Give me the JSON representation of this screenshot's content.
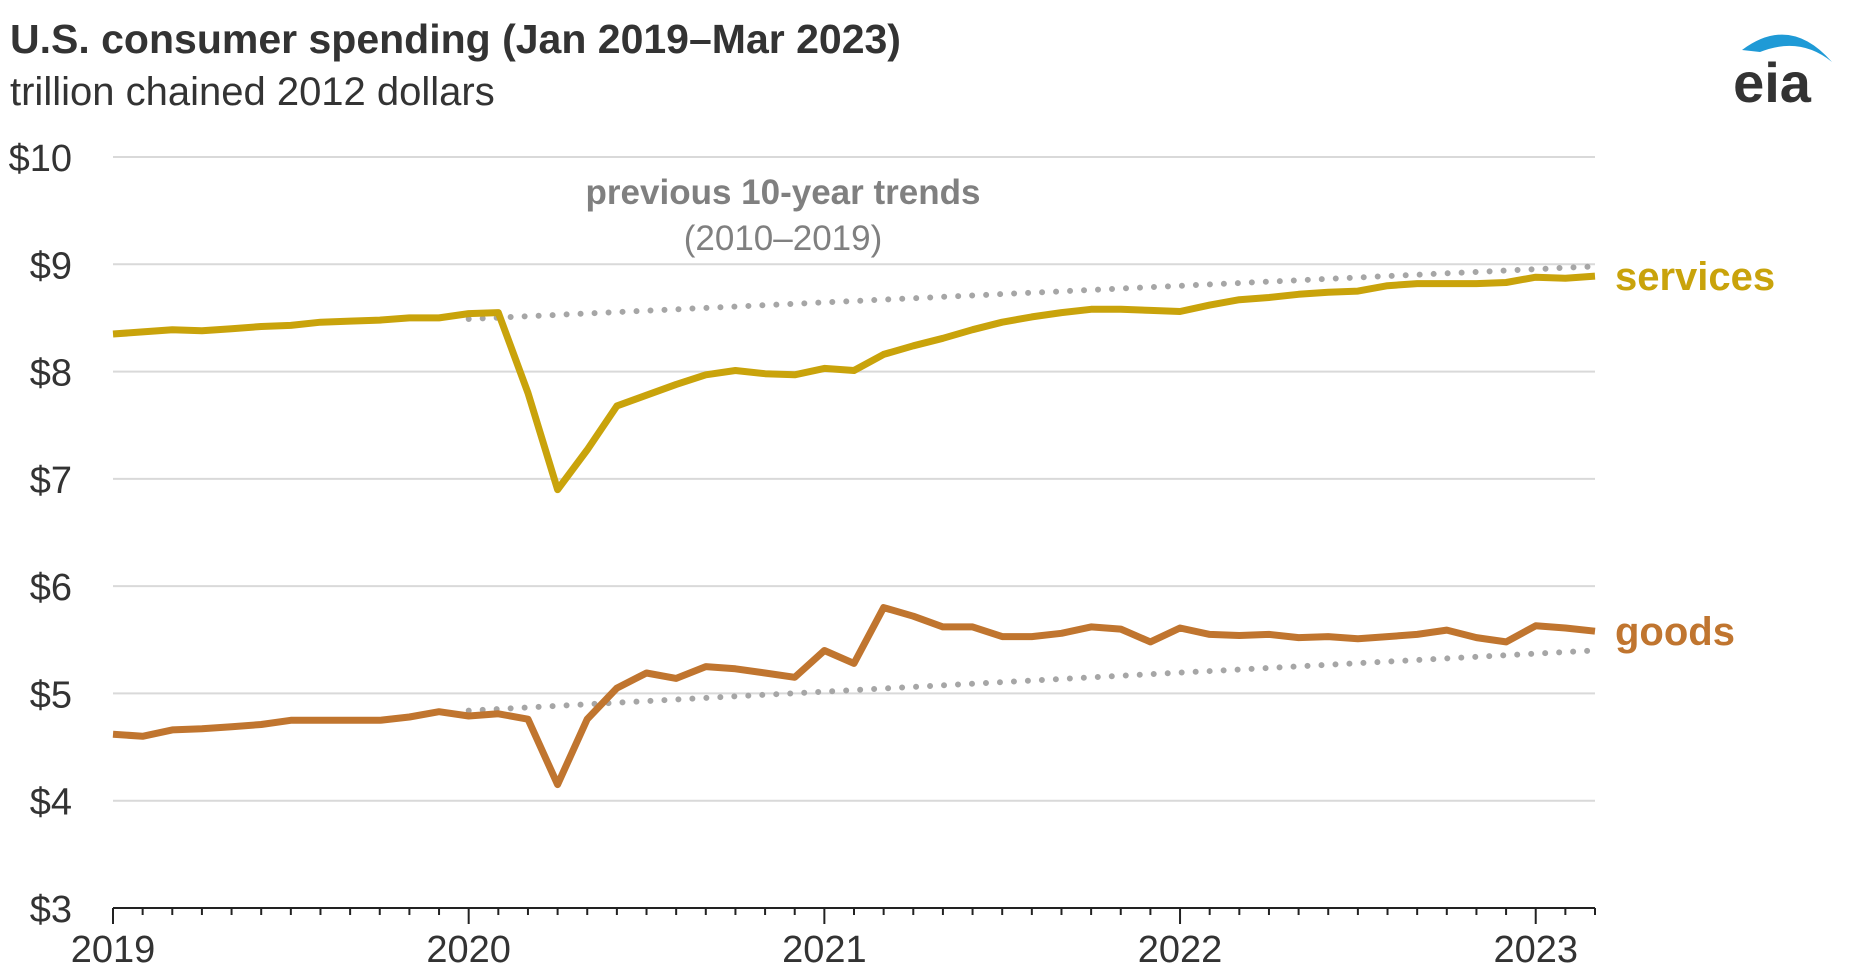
{
  "header": {
    "title": "U.S. consumer spending (Jan 2019–Mar 2023)",
    "subtitle": "trillion chained 2012 dollars",
    "logo_text": "eia"
  },
  "colors": {
    "services": "#c9a30b",
    "goods": "#c0752f",
    "trend": "#a6a6a6",
    "grid": "#d9d9d9",
    "text": "#333333",
    "annotation": "#808080",
    "logo_arc": "#1f9ad6"
  },
  "chart_data": {
    "type": "line",
    "title": "U.S. consumer spending (Jan 2019–Mar 2023)",
    "ylabel": "trillion chained 2012 dollars",
    "ylim": [
      3,
      10
    ],
    "yticks": [
      3,
      4,
      5,
      6,
      7,
      8,
      9,
      10
    ],
    "ytick_labels": [
      "$3",
      "$4",
      "$5",
      "$6",
      "$7",
      "$8",
      "$9",
      "$10"
    ],
    "xlim": [
      "2019-01",
      "2023-03"
    ],
    "xticks": [
      "2019-01",
      "2020-01",
      "2021-01",
      "2022-01",
      "2023-01"
    ],
    "xtick_labels": [
      "2019",
      "2020",
      "2021",
      "2022",
      "2023"
    ],
    "grid": true,
    "annotation": {
      "line1": "previous 10-year trends",
      "line2": "(2010–2019)"
    },
    "x": [
      "2019-01",
      "2019-02",
      "2019-03",
      "2019-04",
      "2019-05",
      "2019-06",
      "2019-07",
      "2019-08",
      "2019-09",
      "2019-10",
      "2019-11",
      "2019-12",
      "2020-01",
      "2020-02",
      "2020-03",
      "2020-04",
      "2020-05",
      "2020-06",
      "2020-07",
      "2020-08",
      "2020-09",
      "2020-10",
      "2020-11",
      "2020-12",
      "2021-01",
      "2021-02",
      "2021-03",
      "2021-04",
      "2021-05",
      "2021-06",
      "2021-07",
      "2021-08",
      "2021-09",
      "2021-10",
      "2021-11",
      "2021-12",
      "2022-01",
      "2022-02",
      "2022-03",
      "2022-04",
      "2022-05",
      "2022-06",
      "2022-07",
      "2022-08",
      "2022-09",
      "2022-10",
      "2022-11",
      "2022-12",
      "2023-01",
      "2023-02",
      "2023-03"
    ],
    "series": [
      {
        "name": "services",
        "values": [
          8.35,
          8.37,
          8.39,
          8.38,
          8.4,
          8.42,
          8.43,
          8.46,
          8.47,
          8.48,
          8.5,
          8.5,
          8.54,
          8.55,
          7.8,
          6.9,
          7.27,
          7.68,
          7.78,
          7.88,
          7.97,
          8.01,
          7.98,
          7.97,
          8.03,
          8.01,
          8.16,
          8.24,
          8.31,
          8.39,
          8.46,
          8.51,
          8.55,
          8.58,
          8.58,
          8.57,
          8.56,
          8.62,
          8.67,
          8.69,
          8.72,
          8.74,
          8.75,
          8.8,
          8.82,
          8.82,
          8.82,
          8.83,
          8.88,
          8.87,
          8.89
        ]
      },
      {
        "name": "goods",
        "values": [
          4.62,
          4.6,
          4.66,
          4.67,
          4.69,
          4.71,
          4.75,
          4.75,
          4.75,
          4.75,
          4.78,
          4.83,
          4.79,
          4.81,
          4.76,
          4.15,
          4.76,
          5.05,
          5.19,
          5.14,
          5.25,
          5.23,
          5.19,
          5.15,
          5.4,
          5.28,
          5.8,
          5.72,
          5.62,
          5.62,
          5.53,
          5.53,
          5.56,
          5.62,
          5.6,
          5.48,
          5.61,
          5.55,
          5.54,
          5.55,
          5.52,
          5.53,
          5.51,
          5.53,
          5.55,
          5.59,
          5.52,
          5.48,
          5.63,
          5.61,
          5.58
        ]
      },
      {
        "name": "services trend",
        "style": "dotted",
        "x": [
          "2020-01",
          "2023-03"
        ],
        "values": [
          8.49,
          8.98
        ]
      },
      {
        "name": "goods trend",
        "style": "dotted",
        "x": [
          "2020-01",
          "2023-03"
        ],
        "values": [
          4.84,
          5.4
        ]
      }
    ]
  }
}
